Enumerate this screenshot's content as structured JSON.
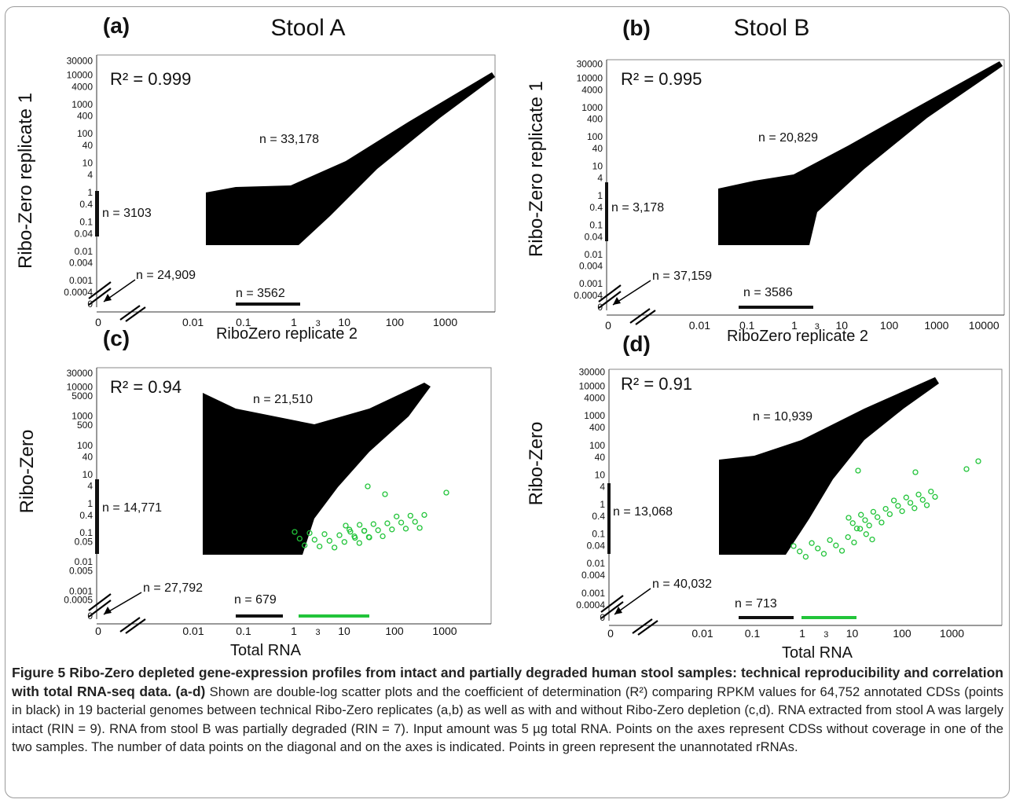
{
  "panels": [
    {
      "label": "(a)",
      "title": "Stool A",
      "y_label": "Ribo-Zero  replicate 1",
      "x_label": "RiboZero  replicate 2",
      "r2": "R² = 0.999",
      "annotations": [
        "n = 33,178",
        "n = 3103",
        "n = 24,909",
        "n = 3562"
      ],
      "yticks": [
        "30000",
        "10000",
        "4000",
        "1000",
        "400",
        "100",
        "40",
        "10",
        "4",
        "1",
        "0.4",
        "0.1",
        "0.04",
        "0.01",
        "0.004",
        "0.001",
        "0.0004",
        "0"
      ],
      "xticks": [
        "0",
        "0.01",
        "0.1",
        "1",
        "3",
        "10",
        "100",
        "1000"
      ]
    },
    {
      "label": "(b)",
      "title": "Stool B",
      "y_label": "Ribo-Zero  replicate 1",
      "x_label": "RiboZero  replicate 2",
      "r2": "R² = 0.995",
      "annotations": [
        "n = 20,829",
        "n = 3,178",
        "n = 37,159",
        "n = 3586"
      ],
      "yticks": [
        "30000",
        "10000",
        "4000",
        "1000",
        "400",
        "100",
        "40",
        "10",
        "4",
        "1",
        "0.4",
        "0.1",
        "0.04",
        "0.01",
        "0.004",
        "0.001",
        "0.0004",
        "0"
      ],
      "xticks": [
        "0",
        "0.01",
        "0.1",
        "1",
        "3",
        "10",
        "100",
        "1000",
        "10000"
      ]
    },
    {
      "label": "(c)",
      "title": "",
      "y_label": "Ribo-Zero",
      "x_label": "Total RNA",
      "r2": "R² = 0.94",
      "annotations": [
        "n = 21,510",
        "n = 14,771",
        "n = 27,792",
        "n = 679"
      ],
      "yticks": [
        "30000",
        "10000",
        "5000",
        "1000",
        "500",
        "100",
        "40",
        "10",
        "4",
        "1",
        "0.4",
        "0.1",
        "0.05",
        "0.01",
        "0.005",
        "0.001",
        "0.0005",
        "0"
      ],
      "xticks": [
        "0",
        "0.01",
        "0.1",
        "1",
        "3",
        "10",
        "100",
        "1000"
      ]
    },
    {
      "label": "(d)",
      "title": "",
      "y_label": "Ribo-Zero",
      "x_label": "Total RNA",
      "r2": "R² = 0.91",
      "annotations": [
        "n = 10,939",
        "n = 13,068",
        "n = 40,032",
        "n = 713"
      ],
      "yticks": [
        "30000",
        "10000",
        "4000",
        "1000",
        "400",
        "100",
        "40",
        "10",
        "4",
        "1",
        "0.4",
        "0.1",
        "0.04",
        "0.01",
        "0.004",
        "0.001",
        "0.0004",
        "0"
      ],
      "xticks": [
        "0",
        "0.01",
        "0.1",
        "1",
        "3",
        "10",
        "100",
        "1000"
      ]
    }
  ],
  "caption": {
    "title": "Figure 5 Ribo-Zero depleted gene-expression profiles from intact and partially degraded human stool samples: technical reproducibility and correlation with total RNA-seq data.",
    "panels": "(a-d)",
    "text": "Shown are double-log scatter plots and the coefficient of determination (R²) comparing RPKM values for 64,752 annotated CDSs (points in black) in 19 bacterial genomes between technical Ribo-Zero replicates (a,b) as well as with and without Ribo-Zero depletion (c,d). RNA extracted from stool A was largely intact (RIN = 9). RNA from stool B was partially degraded (RIN = 7). Input amount was 5 µg total RNA. Points on the axes represent CDSs without coverage in one of the two samples. The number of data points on the diagonal and on the axes is indicated. Points in green represent the unannotated rRNAs."
  }
}
